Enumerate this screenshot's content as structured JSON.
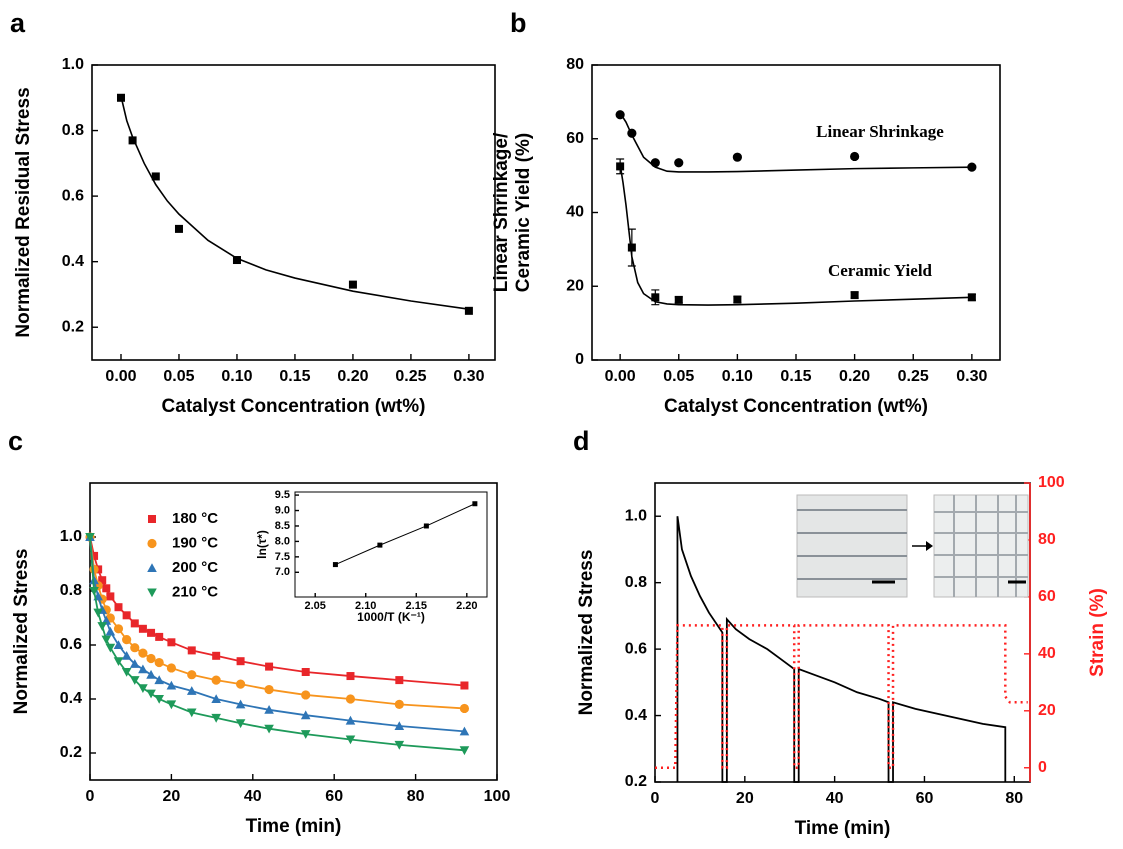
{
  "chart_data": [
    {
      "label": "a",
      "type": "scatter",
      "xlabel": "Catalyst Concentration (wt%)",
      "ylabel": [
        "Normalized Residual Stress"
      ],
      "xlim": [
        -0.025,
        0.3225
      ],
      "ylim": [
        0.1,
        1.0
      ],
      "xticks": [
        {
          "value": 0,
          "label": "0.00"
        },
        {
          "value": 0.05,
          "label": "0.05"
        },
        {
          "value": 0.1,
          "label": "0.10"
        },
        {
          "value": 0.15,
          "label": "0.15"
        },
        {
          "value": 0.2,
          "label": "0.20"
        },
        {
          "value": 0.25,
          "label": "0.25"
        },
        {
          "value": 0.3,
          "label": "0.30"
        }
      ],
      "yticks": [
        0.2,
        0.4,
        0.6,
        0.8,
        {
          "value": 1.0,
          "label": "1.0"
        }
      ],
      "series": [
        {
          "color": "#000000",
          "marker": "square",
          "x": [
            0,
            0.01,
            0.03,
            0.05,
            0.1,
            0.2,
            0.3
          ],
          "values": [
            0.9,
            0.77,
            0.66,
            0.5,
            0.405,
            0.33,
            0.25
          ],
          "fit": {
            "x": [
              0,
              0.005,
              0.01,
              0.02,
              0.03,
              0.04,
              0.05,
              0.075,
              0.1,
              0.125,
              0.15,
              0.2,
              0.25,
              0.3
            ],
            "values": [
              0.905,
              0.83,
              0.78,
              0.7,
              0.635,
              0.585,
              0.545,
              0.465,
              0.41,
              0.375,
              0.35,
              0.31,
              0.28,
              0.255
            ]
          }
        }
      ]
    },
    {
      "label": "b",
      "type": "scatter",
      "xlabel": "Catalyst Concentration (wt%)",
      "ylabel": [
        "Linear Shrinkage/",
        "Ceramic Yield (%)"
      ],
      "xlim": [
        -0.024,
        0.324
      ],
      "ylim": [
        0,
        80
      ],
      "xticks": [
        {
          "value": 0,
          "label": "0.00"
        },
        {
          "value": 0.05,
          "label": "0.05"
        },
        {
          "value": 0.1,
          "label": "0.10"
        },
        {
          "value": 0.15,
          "label": "0.15"
        },
        {
          "value": 0.2,
          "label": "0.20"
        },
        {
          "value": 0.25,
          "label": "0.25"
        },
        {
          "value": 0.3,
          "label": "0.30"
        }
      ],
      "yticks": [
        0,
        20,
        40,
        60,
        80
      ],
      "annotations": [
        "Linear Shrinkage",
        "Ceramic Yield"
      ],
      "series": [
        {
          "color": "#000000",
          "marker": "circle",
          "x": [
            0,
            0.01,
            0.03,
            0.05,
            0.1,
            0.2,
            0.3
          ],
          "values": [
            66.5,
            61.5,
            53.5,
            53.5,
            55,
            55.2,
            52.3
          ],
          "fit": {
            "x": [
              0,
              0.005,
              0.01,
              0.02,
              0.03,
              0.04,
              0.05,
              0.075,
              0.1,
              0.15,
              0.2,
              0.25,
              0.3
            ],
            "values": [
              67,
              64.5,
              61,
              55,
              52.3,
              51.2,
              51,
              51,
              51.1,
              51.5,
              51.9,
              52.1,
              52.3
            ]
          }
        },
        {
          "color": "#000000",
          "marker": "square",
          "x": [
            0,
            0.01,
            0.03,
            0.05,
            0.1,
            0.2,
            0.3
          ],
          "values": [
            52.5,
            30.5,
            17,
            16.3,
            16.4,
            17.6,
            17
          ],
          "errors": [
            2,
            5,
            2,
            0.8,
            0.8,
            0.8,
            0.8
          ],
          "fit": {
            "x": [
              0,
              0.0025,
              0.005,
              0.0075,
              0.01,
              0.015,
              0.02,
              0.03,
              0.04,
              0.05,
              0.075,
              0.1,
              0.15,
              0.2,
              0.25,
              0.3
            ],
            "values": [
              53,
              48,
              42,
              35,
              28,
              21,
              18,
              15.8,
              15.2,
              15,
              14.9,
              15,
              15.4,
              16,
              16.5,
              17
            ]
          }
        }
      ]
    },
    {
      "label": "c",
      "type": "scatter",
      "xlabel": "Time (min)",
      "ylabel": [
        "Normalized Stress"
      ],
      "xlim": [
        0,
        100
      ],
      "ylim": [
        0.1,
        1.2
      ],
      "xticks": [
        0,
        20,
        40,
        60,
        80,
        100
      ],
      "yticks": [
        0.2,
        0.4,
        0.6,
        0.8,
        {
          "value": 1.0,
          "label": "1.0"
        }
      ],
      "legend": "upper left",
      "series": [
        {
          "name": "180 °C",
          "color": "#e8262a",
          "marker": "square",
          "line": true,
          "x": [
            0,
            1,
            2,
            3,
            4,
            5,
            7,
            9,
            11,
            13,
            15,
            17,
            20,
            25,
            31,
            37,
            44,
            53,
            64,
            76,
            92
          ],
          "values": [
            1.0,
            0.93,
            0.88,
            0.84,
            0.81,
            0.78,
            0.74,
            0.71,
            0.68,
            0.66,
            0.645,
            0.63,
            0.61,
            0.58,
            0.56,
            0.54,
            0.52,
            0.5,
            0.485,
            0.47,
            0.45
          ]
        },
        {
          "name": "190 °C",
          "color": "#f7941d",
          "marker": "circle",
          "line": true,
          "x": [
            0,
            1,
            2,
            3,
            4,
            5,
            7,
            9,
            11,
            13,
            15,
            17,
            20,
            25,
            31,
            37,
            44,
            53,
            64,
            76,
            92
          ],
          "values": [
            1.0,
            0.88,
            0.82,
            0.77,
            0.73,
            0.7,
            0.66,
            0.62,
            0.59,
            0.57,
            0.55,
            0.535,
            0.515,
            0.49,
            0.47,
            0.455,
            0.435,
            0.415,
            0.4,
            0.38,
            0.365
          ]
        },
        {
          "name": "200 °C",
          "color": "#2e75b6",
          "marker": "triangle-up",
          "line": true,
          "x": [
            0,
            1,
            2,
            3,
            4,
            5,
            7,
            9,
            11,
            13,
            15,
            17,
            20,
            25,
            31,
            37,
            44,
            53,
            64,
            76,
            92
          ],
          "values": [
            1.0,
            0.84,
            0.78,
            0.73,
            0.69,
            0.65,
            0.6,
            0.56,
            0.53,
            0.51,
            0.49,
            0.47,
            0.45,
            0.43,
            0.4,
            0.38,
            0.36,
            0.34,
            0.32,
            0.3,
            0.28
          ]
        },
        {
          "name": "210 °C",
          "color": "#1e9a5a",
          "marker": "triangle-down",
          "line": true,
          "x": [
            0,
            1,
            2,
            3,
            4,
            5,
            7,
            9,
            11,
            13,
            15,
            17,
            20,
            25,
            31,
            37,
            44,
            53,
            64,
            76,
            92
          ],
          "values": [
            1.0,
            0.8,
            0.72,
            0.67,
            0.62,
            0.59,
            0.54,
            0.5,
            0.47,
            0.44,
            0.42,
            0.4,
            0.38,
            0.35,
            0.33,
            0.31,
            0.29,
            0.27,
            0.25,
            0.23,
            0.21
          ]
        }
      ],
      "inset": {
        "type": "line",
        "xlabel": "1000/T (K⁻¹)",
        "ylabel": [
          "ln(τ*)"
        ],
        "xlim": [
          2.03,
          2.22
        ],
        "ylim": [
          6.2,
          9.6
        ],
        "xticks": [
          2.05,
          {
            "value": 2.1,
            "label": "2.10"
          },
          2.15,
          {
            "value": 2.2,
            "label": "2.20"
          }
        ],
        "yticks": [
          {
            "value": 7,
            "label": "7.0"
          },
          7.5,
          {
            "value": 8,
            "label": "8.0"
          },
          8.5,
          {
            "value": 9,
            "label": "9.0"
          },
          9.5
        ],
        "series": [
          {
            "color": "#000000",
            "marker": "square",
            "line": true,
            "x": [
              2.07,
              2.114,
              2.16,
              2.208
            ],
            "values": [
              7.25,
              7.88,
              8.5,
              9.22
            ]
          }
        ]
      }
    },
    {
      "label": "d",
      "type": "line",
      "xlabel": "Time (min)",
      "ylabel": [
        "Normalized Stress"
      ],
      "y2label": "Strain (%)",
      "xlim": [
        0,
        83.5
      ],
      "ylim": [
        0.2,
        1.1
      ],
      "y2lim": [
        -5,
        100
      ],
      "xticks": [
        0,
        20,
        40,
        60,
        80
      ],
      "yticks": [
        0.2,
        0.4,
        0.6,
        0.8,
        {
          "value": 1.0,
          "label": "1.0"
        }
      ],
      "y2ticks": [
        0,
        20,
        40,
        60,
        80,
        100
      ],
      "series": [
        {
          "color": "#000000",
          "line": true,
          "x": [
            5,
            5,
            6,
            8,
            10,
            12,
            15,
            15,
            15.5,
            16,
            16,
            18,
            21,
            25,
            28,
            31,
            31,
            31.5,
            32,
            32,
            36,
            40,
            45,
            50,
            52,
            52,
            52.5,
            53,
            53,
            58,
            63,
            68,
            73,
            78,
            78
          ],
          "values": [
            0.2,
            1.0,
            0.9,
            0.82,
            0.76,
            0.71,
            0.65,
            0.2,
            0.2,
            0.2,
            0.69,
            0.66,
            0.63,
            0.6,
            0.57,
            0.54,
            0.2,
            0.2,
            0.2,
            0.54,
            0.52,
            0.5,
            0.47,
            0.45,
            0.44,
            0.2,
            0.2,
            0.2,
            0.44,
            0.42,
            0.405,
            0.39,
            0.375,
            0.365,
            0.2
          ]
        },
        {
          "color": "#ff2020",
          "axis": "y2",
          "line": true,
          "line_style": "dotted",
          "x": [
            0,
            4.5,
            5,
            15,
            15,
            16,
            16,
            31,
            31,
            32,
            32,
            52,
            52,
            53,
            53,
            78,
            78,
            79,
            83
          ],
          "values": [
            0,
            0,
            50,
            50,
            0,
            0,
            50,
            50,
            0,
            0,
            50,
            50,
            0,
            0,
            50,
            50,
            25,
            23,
            23
          ]
        }
      ]
    }
  ]
}
